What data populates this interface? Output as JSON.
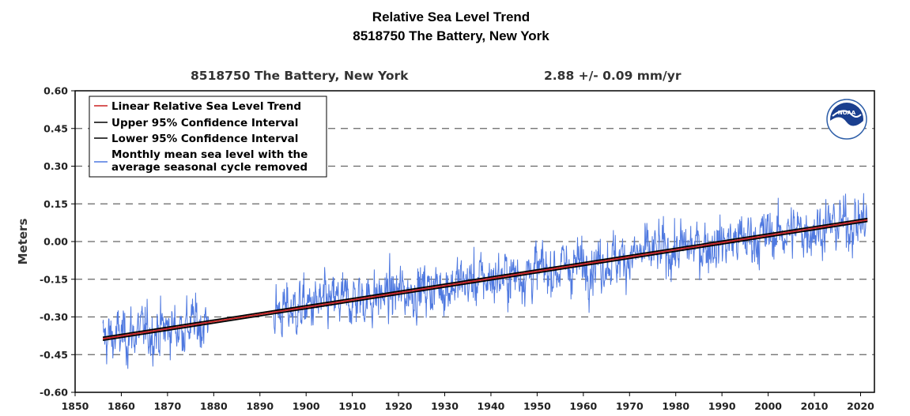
{
  "header": {
    "title_line1": "Relative Sea Level Trend",
    "title_line2": "8518750 The Battery, New York"
  },
  "chart_data": {
    "type": "line",
    "subtitle_station": "8518750 The Battery, New York",
    "subtitle_rate": "2.88 +/-  0.09 mm/yr",
    "ylabel": "Meters",
    "xlabel": "",
    "xlim": [
      1850,
      2023
    ],
    "ylim": [
      -0.6,
      0.6
    ],
    "x_ticks": [
      1850,
      1860,
      1870,
      1880,
      1890,
      1900,
      1910,
      1920,
      1930,
      1940,
      1950,
      1960,
      1970,
      1980,
      1990,
      2000,
      2010,
      2020
    ],
    "y_ticks": [
      0.6,
      0.45,
      0.3,
      0.15,
      0.0,
      -0.15,
      -0.3,
      -0.45,
      -0.6
    ],
    "y_tick_labels": [
      "0.60",
      "0.45",
      "0.30",
      "0.15",
      "0.00",
      "-0.15",
      "-0.30",
      "-0.45",
      "-0.60"
    ],
    "grid": "dashed horizontal",
    "legend_position": "top-left",
    "legend": [
      {
        "label": "Linear Relative Sea Level Trend",
        "color": "#cc2222"
      },
      {
        "label": "Upper 95% Confidence Interval",
        "color": "#000000"
      },
      {
        "label": "Lower 95% Confidence Interval",
        "color": "#000000"
      },
      {
        "label_line1": "Monthly mean sea level with the",
        "label_line2": "average seasonal cycle removed",
        "color": "#4f79e0"
      }
    ],
    "trend": {
      "x": [
        1856,
        2021.5
      ],
      "y": [
        -0.387,
        0.086
      ]
    },
    "ci_offset": 0.006,
    "monthly_segments": [
      {
        "start": 1856.0,
        "end": 1878.9
      },
      {
        "start": 1893.0,
        "end": 2021.5
      }
    ],
    "noise_sd": 0.055,
    "colors": {
      "trend": "#cc2222",
      "ci": "#000000",
      "monthly": "#4f79e0",
      "grid": "#666666"
    }
  }
}
